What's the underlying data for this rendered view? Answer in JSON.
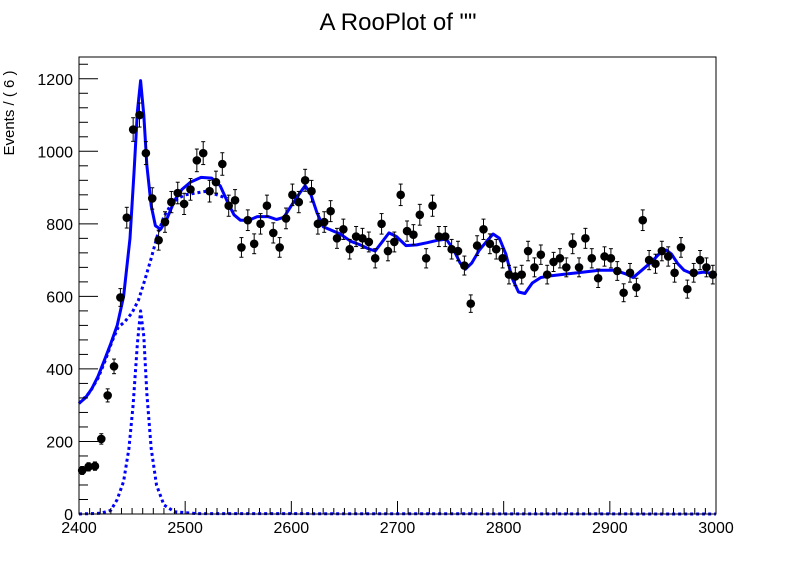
{
  "chart_data": {
    "type": "scatter",
    "title": "A RooPlot of \"\"",
    "xlabel": "",
    "ylabel": "Events / ( 6 )",
    "xlim": [
      2400,
      3000
    ],
    "ylim": [
      0,
      1260
    ],
    "x_ticks": [
      2400,
      2500,
      2600,
      2700,
      2800,
      2900,
      3000
    ],
    "y_ticks": [
      0,
      200,
      400,
      600,
      800,
      1000,
      1200
    ],
    "grid": false,
    "legend": "none",
    "colors": {
      "data": "#000000",
      "fit": "#0000ff"
    },
    "series": [
      {
        "kind": "points-with-error-bars",
        "points": [
          [
            2403,
            120
          ],
          [
            2409,
            130
          ],
          [
            2415,
            132
          ],
          [
            2421,
            207
          ],
          [
            2427,
            327
          ],
          [
            2433,
            407
          ],
          [
            2439,
            597
          ],
          [
            2445,
            817
          ],
          [
            2451,
            1060
          ],
          [
            2457,
            1100
          ],
          [
            2463,
            995
          ],
          [
            2469,
            870
          ],
          [
            2475,
            755
          ],
          [
            2481,
            805
          ],
          [
            2487,
            860
          ],
          [
            2493,
            885
          ],
          [
            2499,
            855
          ],
          [
            2505,
            895
          ],
          [
            2511,
            975
          ],
          [
            2517,
            995
          ],
          [
            2523,
            890
          ],
          [
            2529,
            915
          ],
          [
            2535,
            965
          ],
          [
            2541,
            850
          ],
          [
            2547,
            865
          ],
          [
            2553,
            735
          ],
          [
            2559,
            810
          ],
          [
            2565,
            745
          ],
          [
            2571,
            800
          ],
          [
            2577,
            850
          ],
          [
            2583,
            775
          ],
          [
            2589,
            735
          ],
          [
            2595,
            815
          ],
          [
            2601,
            880
          ],
          [
            2607,
            860
          ],
          [
            2613,
            920
          ],
          [
            2619,
            890
          ],
          [
            2625,
            800
          ],
          [
            2631,
            805
          ],
          [
            2637,
            835
          ],
          [
            2643,
            760
          ],
          [
            2649,
            785
          ],
          [
            2655,
            730
          ],
          [
            2661,
            765
          ],
          [
            2667,
            760
          ],
          [
            2673,
            750
          ],
          [
            2679,
            705
          ],
          [
            2685,
            800
          ],
          [
            2691,
            725
          ],
          [
            2697,
            750
          ],
          [
            2703,
            880
          ],
          [
            2709,
            780
          ],
          [
            2715,
            770
          ],
          [
            2721,
            825
          ],
          [
            2727,
            705
          ],
          [
            2733,
            850
          ],
          [
            2739,
            765
          ],
          [
            2745,
            765
          ],
          [
            2751,
            730
          ],
          [
            2757,
            725
          ],
          [
            2763,
            685
          ],
          [
            2769,
            580
          ],
          [
            2775,
            740
          ],
          [
            2781,
            785
          ],
          [
            2787,
            745
          ],
          [
            2793,
            730
          ],
          [
            2799,
            705
          ],
          [
            2805,
            660
          ],
          [
            2811,
            655
          ],
          [
            2817,
            660
          ],
          [
            2823,
            725
          ],
          [
            2829,
            680
          ],
          [
            2835,
            715
          ],
          [
            2841,
            660
          ],
          [
            2847,
            695
          ],
          [
            2853,
            705
          ],
          [
            2859,
            680
          ],
          [
            2865,
            745
          ],
          [
            2871,
            680
          ],
          [
            2877,
            760
          ],
          [
            2883,
            705
          ],
          [
            2889,
            650
          ],
          [
            2895,
            710
          ],
          [
            2901,
            705
          ],
          [
            2907,
            670
          ],
          [
            2913,
            610
          ],
          [
            2919,
            665
          ],
          [
            2925,
            625
          ],
          [
            2931,
            810
          ],
          [
            2937,
            700
          ],
          [
            2943,
            690
          ],
          [
            2949,
            725
          ],
          [
            2955,
            710
          ],
          [
            2961,
            665
          ],
          [
            2967,
            735
          ],
          [
            2973,
            620
          ],
          [
            2979,
            665
          ],
          [
            2985,
            700
          ],
          [
            2991,
            680
          ],
          [
            2997,
            660
          ]
        ]
      },
      {
        "kind": "total-fit-curve",
        "style": "solid",
        "points": [
          [
            2400,
            305
          ],
          [
            2406,
            320
          ],
          [
            2412,
            345
          ],
          [
            2418,
            380
          ],
          [
            2424,
            425
          ],
          [
            2430,
            470
          ],
          [
            2436,
            520
          ],
          [
            2442,
            600
          ],
          [
            2448,
            760
          ],
          [
            2452,
            950
          ],
          [
            2455,
            1110
          ],
          [
            2458,
            1195
          ],
          [
            2461,
            1100
          ],
          [
            2464,
            960
          ],
          [
            2468,
            850
          ],
          [
            2472,
            795
          ],
          [
            2477,
            785
          ],
          [
            2483,
            815
          ],
          [
            2490,
            865
          ],
          [
            2497,
            895
          ],
          [
            2505,
            915
          ],
          [
            2515,
            928
          ],
          [
            2525,
            926
          ],
          [
            2533,
            905
          ],
          [
            2540,
            860
          ],
          [
            2546,
            825
          ],
          [
            2552,
            810
          ],
          [
            2560,
            810
          ],
          [
            2568,
            820
          ],
          [
            2578,
            820
          ],
          [
            2586,
            812
          ],
          [
            2593,
            818
          ],
          [
            2600,
            850
          ],
          [
            2608,
            885
          ],
          [
            2613,
            905
          ],
          [
            2618,
            885
          ],
          [
            2624,
            832
          ],
          [
            2630,
            792
          ],
          [
            2638,
            782
          ],
          [
            2646,
            772
          ],
          [
            2656,
            752
          ],
          [
            2665,
            742
          ],
          [
            2672,
            732
          ],
          [
            2679,
            725
          ],
          [
            2686,
            752
          ],
          [
            2692,
            775
          ],
          [
            2699,
            765
          ],
          [
            2708,
            740
          ],
          [
            2718,
            742
          ],
          [
            2728,
            748
          ],
          [
            2738,
            755
          ],
          [
            2746,
            758
          ],
          [
            2753,
            728
          ],
          [
            2759,
            692
          ],
          [
            2764,
            675
          ],
          [
            2770,
            692
          ],
          [
            2777,
            727
          ],
          [
            2784,
            752
          ],
          [
            2790,
            772
          ],
          [
            2796,
            760
          ],
          [
            2802,
            717
          ],
          [
            2808,
            650
          ],
          [
            2814,
            612
          ],
          [
            2820,
            608
          ],
          [
            2827,
            637
          ],
          [
            2835,
            652
          ],
          [
            2845,
            657
          ],
          [
            2860,
            662
          ],
          [
            2875,
            667
          ],
          [
            2890,
            672
          ],
          [
            2905,
            672
          ],
          [
            2915,
            662
          ],
          [
            2922,
            652
          ],
          [
            2930,
            672
          ],
          [
            2940,
            697
          ],
          [
            2948,
            722
          ],
          [
            2953,
            728
          ],
          [
            2958,
            717
          ],
          [
            2964,
            690
          ],
          [
            2970,
            672
          ],
          [
            2978,
            662
          ],
          [
            2988,
            667
          ],
          [
            3000,
            662
          ]
        ]
      },
      {
        "kind": "background-component",
        "style": "dashed",
        "points": [
          [
            2400,
            305
          ],
          [
            2410,
            335
          ],
          [
            2418,
            375
          ],
          [
            2425,
            425
          ],
          [
            2431,
            475
          ],
          [
            2437,
            515
          ],
          [
            2443,
            530
          ],
          [
            2450,
            555
          ],
          [
            2456,
            590
          ],
          [
            2462,
            645
          ],
          [
            2468,
            705
          ],
          [
            2474,
            770
          ],
          [
            2480,
            820
          ],
          [
            2486,
            850
          ],
          [
            2493,
            870
          ],
          [
            2500,
            880
          ],
          [
            2520,
            890
          ],
          [
            2540,
            870
          ]
        ]
      },
      {
        "kind": "signal-component",
        "style": "dashed",
        "points": [
          [
            2400,
            0
          ],
          [
            2420,
            2
          ],
          [
            2430,
            10
          ],
          [
            2436,
            40
          ],
          [
            2442,
            90
          ],
          [
            2447,
            180
          ],
          [
            2451,
            300
          ],
          [
            2455,
            470
          ],
          [
            2458,
            560
          ],
          [
            2461,
            490
          ],
          [
            2464,
            330
          ],
          [
            2468,
            180
          ],
          [
            2473,
            80
          ],
          [
            2480,
            25
          ],
          [
            2490,
            6
          ],
          [
            2510,
            1
          ],
          [
            3000,
            0
          ]
        ]
      }
    ]
  }
}
